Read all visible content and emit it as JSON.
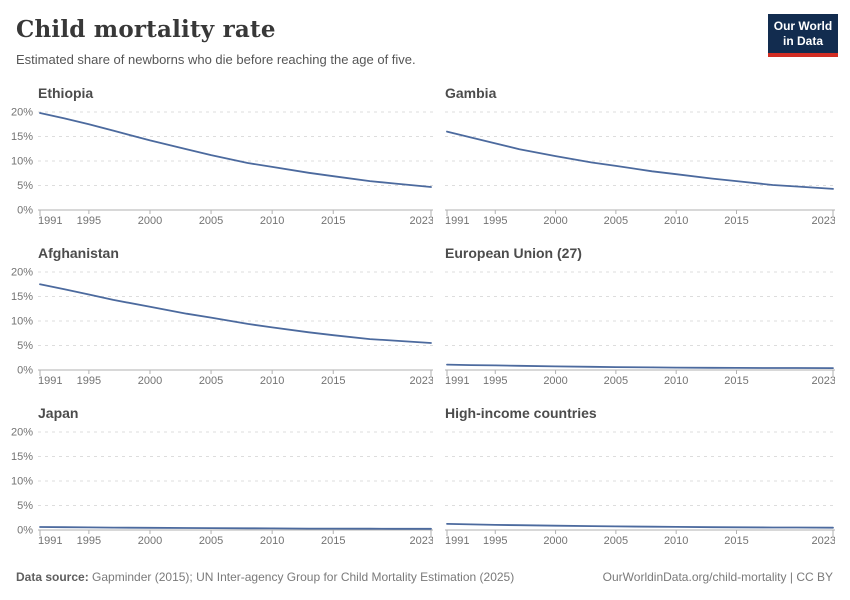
{
  "header": {
    "title": "Child mortality rate",
    "subtitle": "Estimated share of newborns who die before reaching the age of five.",
    "logo_line1": "Our World",
    "logo_line2": "in Data"
  },
  "footer": {
    "source_label": "Data source:",
    "source_text": " Gapminder (2015); UN Inter-agency Group for Child Mortality Estimation (2025)",
    "link_text": "OurWorldinData.org/child-mortality",
    "divider": " | ",
    "license": "CC BY"
  },
  "colors": {
    "line": "#4c6a9e",
    "grid": "#dddddd",
    "axis": "#b1b1b1",
    "tick_label": "#737373",
    "logo_bg": "#122c4f",
    "logo_red": "#d22d23"
  },
  "chart_data": [
    {
      "type": "line",
      "title": "Ethiopia",
      "xlim": [
        1991,
        2023
      ],
      "ylim": [
        0,
        20
      ],
      "yticks": [
        0,
        5,
        10,
        15,
        20
      ],
      "ytick_suffix": "%",
      "xticks": [
        1991,
        1995,
        2000,
        2005,
        2010,
        2015,
        2023
      ],
      "show_y_labels": true,
      "grid": "dashed",
      "x": [
        1991,
        1993,
        1995,
        1997,
        2000,
        2003,
        2005,
        2008,
        2010,
        2013,
        2015,
        2018,
        2020,
        2023
      ],
      "values": [
        19.8,
        18.7,
        17.5,
        16.2,
        14.2,
        12.4,
        11.2,
        9.6,
        8.8,
        7.6,
        6.9,
        5.9,
        5.4,
        4.7
      ]
    },
    {
      "type": "line",
      "title": "Gambia",
      "xlim": [
        1991,
        2023
      ],
      "ylim": [
        0,
        20
      ],
      "yticks": [
        0,
        5,
        10,
        15,
        20
      ],
      "ytick_suffix": "%",
      "xticks": [
        1991,
        1995,
        2000,
        2005,
        2010,
        2015,
        2023
      ],
      "show_y_labels": false,
      "grid": "dashed",
      "x": [
        1991,
        1993,
        1995,
        1997,
        2000,
        2003,
        2005,
        2008,
        2010,
        2013,
        2015,
        2018,
        2020,
        2023
      ],
      "values": [
        16.0,
        14.8,
        13.6,
        12.4,
        11.0,
        9.7,
        9.0,
        7.9,
        7.3,
        6.4,
        5.9,
        5.1,
        4.8,
        4.3
      ]
    },
    {
      "type": "line",
      "title": "Afghanistan",
      "xlim": [
        1991,
        2023
      ],
      "ylim": [
        0,
        20
      ],
      "yticks": [
        0,
        5,
        10,
        15,
        20
      ],
      "ytick_suffix": "%",
      "xticks": [
        1991,
        1995,
        2000,
        2005,
        2010,
        2015,
        2023
      ],
      "show_y_labels": true,
      "grid": "dashed",
      "x": [
        1991,
        1993,
        1995,
        1997,
        2000,
        2003,
        2005,
        2008,
        2010,
        2013,
        2015,
        2018,
        2020,
        2023
      ],
      "values": [
        17.5,
        16.5,
        15.4,
        14.3,
        12.9,
        11.5,
        10.7,
        9.4,
        8.7,
        7.7,
        7.1,
        6.3,
        6.0,
        5.5
      ]
    },
    {
      "type": "line",
      "title": "European Union (27)",
      "xlim": [
        1991,
        2023
      ],
      "ylim": [
        0,
        20
      ],
      "yticks": [
        0,
        5,
        10,
        15,
        20
      ],
      "ytick_suffix": "%",
      "xticks": [
        1991,
        1995,
        2000,
        2005,
        2010,
        2015,
        2023
      ],
      "show_y_labels": false,
      "grid": "dashed",
      "x": [
        1991,
        1993,
        1995,
        1997,
        2000,
        2003,
        2005,
        2008,
        2010,
        2013,
        2015,
        2018,
        2020,
        2023
      ],
      "values": [
        1.1,
        1.0,
        0.93,
        0.85,
        0.74,
        0.65,
        0.6,
        0.53,
        0.49,
        0.45,
        0.43,
        0.41,
        0.4,
        0.38
      ]
    },
    {
      "type": "line",
      "title": "Japan",
      "xlim": [
        1991,
        2023
      ],
      "ylim": [
        0,
        20
      ],
      "yticks": [
        0,
        5,
        10,
        15,
        20
      ],
      "ytick_suffix": "%",
      "xticks": [
        1991,
        1995,
        2000,
        2005,
        2010,
        2015,
        2023
      ],
      "show_y_labels": true,
      "grid": "dashed",
      "x": [
        1991,
        1993,
        1995,
        1997,
        2000,
        2003,
        2005,
        2008,
        2010,
        2013,
        2015,
        2018,
        2020,
        2023
      ],
      "values": [
        0.62,
        0.58,
        0.53,
        0.49,
        0.44,
        0.4,
        0.38,
        0.34,
        0.32,
        0.29,
        0.28,
        0.26,
        0.25,
        0.24
      ]
    },
    {
      "type": "line",
      "title": "High-income countries",
      "xlim": [
        1991,
        2023
      ],
      "ylim": [
        0,
        20
      ],
      "yticks": [
        0,
        5,
        10,
        15,
        20
      ],
      "ytick_suffix": "%",
      "xticks": [
        1991,
        1995,
        2000,
        2005,
        2010,
        2015,
        2023
      ],
      "show_y_labels": false,
      "grid": "dashed",
      "x": [
        1991,
        1993,
        1995,
        1997,
        2000,
        2003,
        2005,
        2008,
        2010,
        2013,
        2015,
        2018,
        2020,
        2023
      ],
      "values": [
        1.25,
        1.15,
        1.05,
        0.97,
        0.87,
        0.79,
        0.74,
        0.67,
        0.63,
        0.58,
        0.55,
        0.52,
        0.5,
        0.47
      ]
    }
  ]
}
